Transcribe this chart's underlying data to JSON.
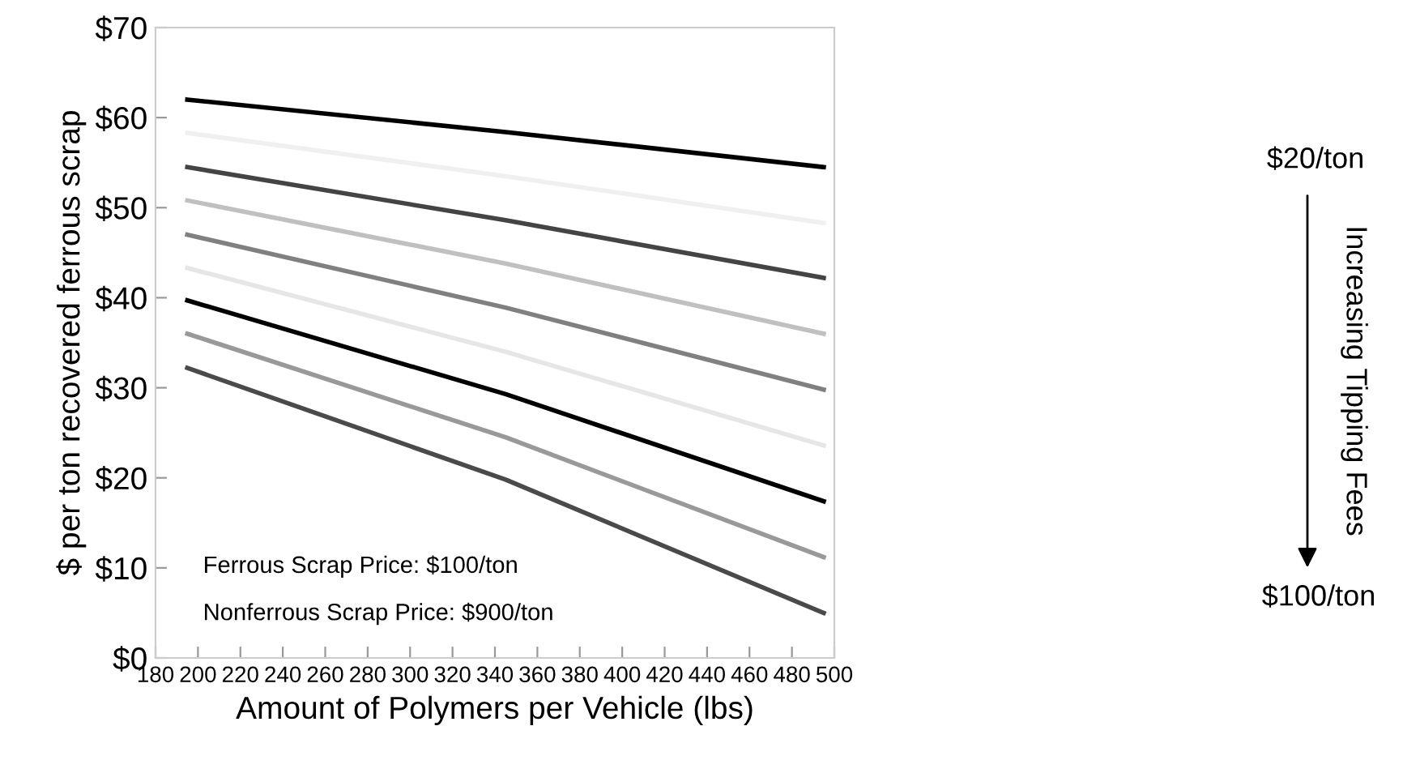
{
  "chart_data": {
    "type": "line",
    "xlabel": "Amount of Polymers per Vehicle (lbs)",
    "ylabel": "$ per ton recovered ferrous scrap",
    "xlim": [
      180,
      500
    ],
    "xticks": [
      180,
      200,
      220,
      240,
      260,
      280,
      300,
      320,
      340,
      360,
      380,
      400,
      420,
      440,
      460,
      480,
      500
    ],
    "ylim": [
      0,
      70
    ],
    "yticks": [
      {
        "value": 0,
        "label": "$0"
      },
      {
        "value": 10,
        "label": "$10"
      },
      {
        "value": 20,
        "label": "$20"
      },
      {
        "value": 30,
        "label": "$30"
      },
      {
        "value": 40,
        "label": "$40"
      },
      {
        "value": 50,
        "label": "$50"
      },
      {
        "value": 60,
        "label": "$60"
      },
      {
        "value": 70,
        "label": "$70"
      }
    ],
    "grid": false,
    "legend": false,
    "marker": "none",
    "line_style": "solid",
    "x": [
      195,
      345,
      495
    ],
    "series": [
      {
        "color": "#000000",
        "values": [
          62,
          58.4,
          54.5
        ]
      },
      {
        "color": "#f0f0f0",
        "values": [
          58.3,
          53.5,
          48.3
        ]
      },
      {
        "color": "#444444",
        "values": [
          54.5,
          48.6,
          42.2
        ]
      },
      {
        "color": "#c0c0c0",
        "values": [
          50.8,
          43.8,
          36
        ]
      },
      {
        "color": "#808080",
        "values": [
          47,
          38.9,
          29.8
        ]
      },
      {
        "color": "#e6e6e6",
        "values": [
          43.3,
          34.0,
          23.6
        ]
      },
      {
        "color": "#000000",
        "values": [
          39.7,
          29.3,
          17.4
        ]
      },
      {
        "color": "#999999",
        "values": [
          36,
          24.5,
          11.2
        ]
      },
      {
        "color": "#4a4a4a",
        "values": [
          32.2,
          19.8,
          5
        ]
      }
    ],
    "annotations": [
      "Ferrous Scrap Price: $100/ton",
      "Nonferrous Scrap Price: $900/ton",
      "$20/ton",
      "$100/ton",
      "Increasing Tipping Fees"
    ]
  }
}
